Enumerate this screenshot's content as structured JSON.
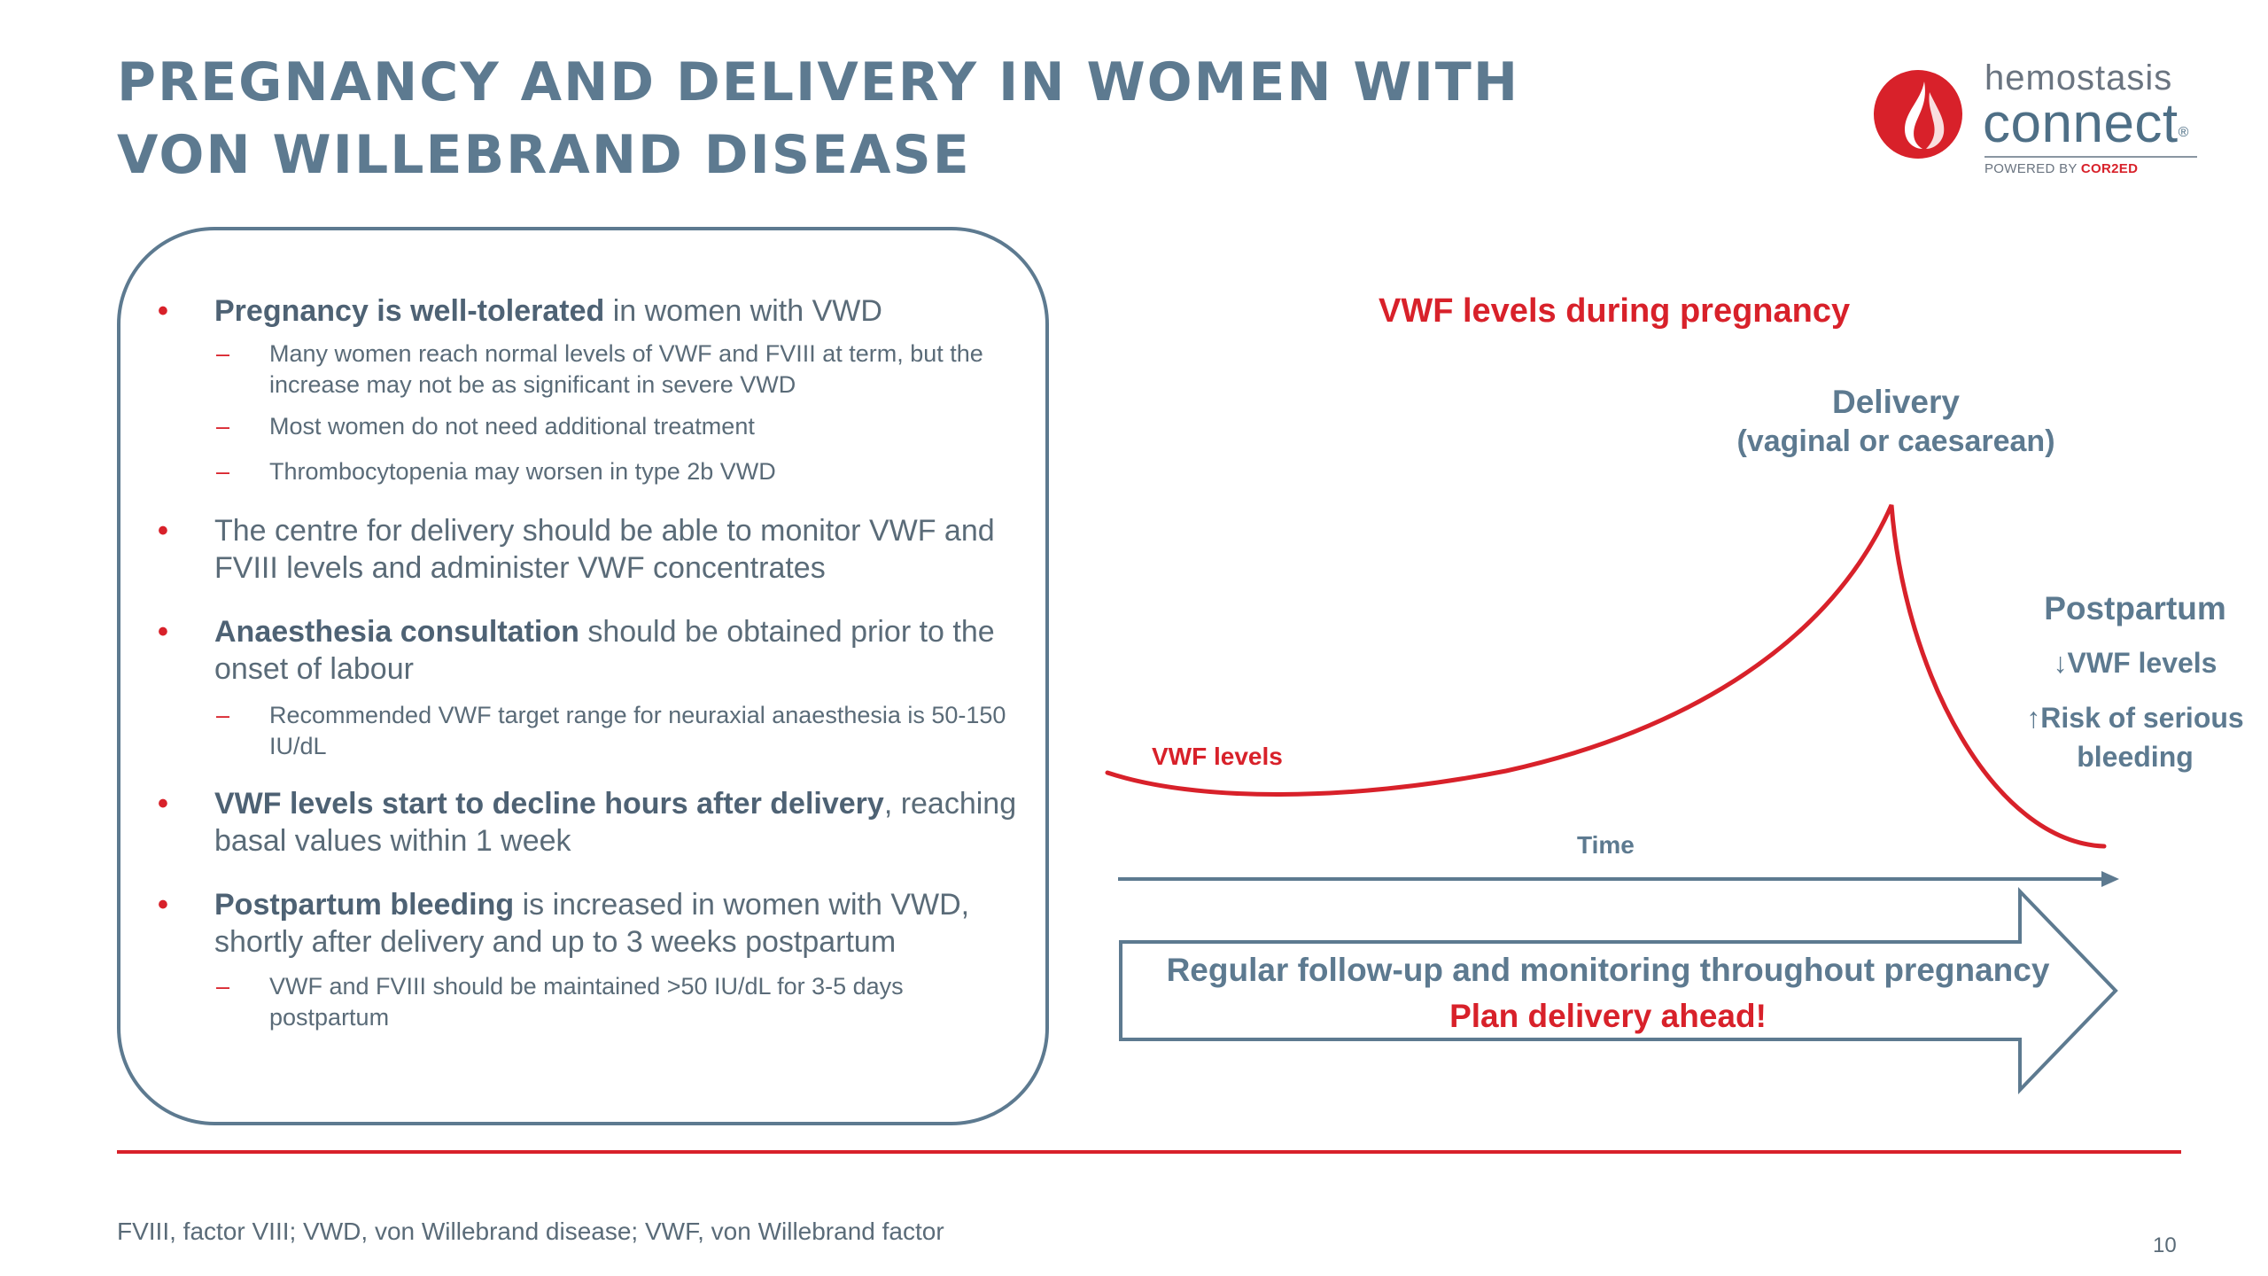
{
  "title": {
    "line1": "PREGNANCY AND DELIVERY IN WOMEN WITH",
    "line2": "VON WILLEBRAND DISEASE"
  },
  "logo": {
    "word1": "hemostasis",
    "word2": "connect",
    "reg": "®",
    "powered_prefix": "POWERED BY ",
    "powered_brand": "COR2ED"
  },
  "bullets": {
    "b1": {
      "bold": "Pregnancy is well-tolerated",
      "rest": " in women with VWD"
    },
    "b1_s1": "Many women reach normal levels of VWF and FVIII at term, but the increase may not be as significant in severe VWD",
    "b1_s2": "Most women do not need additional treatment",
    "b1_s3": "Thrombocytopenia may worsen in type 2b VWD",
    "b2": "The centre for delivery should be able to monitor VWF and FVIII levels and administer VWF concentrates",
    "b3": {
      "bold": "Anaesthesia consultation",
      "rest": " should be obtained prior to the onset of labour"
    },
    "b3_s1": "Recommended VWF target range for neuraxial anaesthesia is 50-150 IU/dL",
    "b4": {
      "bold": "VWF levels start to decline hours after delivery",
      "rest": ", reaching basal values within 1 week"
    },
    "b5": {
      "bold": "Postpartum bleeding",
      "rest": " is increased in women with VWD, shortly after delivery and up to 3 weeks postpartum"
    },
    "b5_s1": "VWF and FVIII should be maintained >50 IU/dL for 3-5 days postpartum",
    "bullet_char": "•",
    "dash_char": "–"
  },
  "diagram": {
    "title": "VWF levels during pregnancy",
    "delivery_title": "Delivery",
    "delivery_sub": "(vaginal or caesarean)",
    "postpartum_title": "Postpartum",
    "postpartum_line1": "VWF levels",
    "postpartum_line2a": "Risk of serious",
    "postpartum_line2b": "bleeding",
    "down_arrow": "↓",
    "up_arrow": "↑",
    "curve_label": "VWF levels",
    "axis_label": "Time",
    "banner_line1": "Regular follow-up and monitoring throughout pregnancy",
    "banner_line2": "Plan delivery ahead!",
    "colors": {
      "curve": "#d8212a",
      "axis": "#5d7a90",
      "arrow_outline": "#5d7a90"
    }
  },
  "footer": {
    "footnote": "FVIII, factor VIII; VWD, von Willebrand disease; VWF, von Willebrand factor",
    "page_number": "10"
  }
}
